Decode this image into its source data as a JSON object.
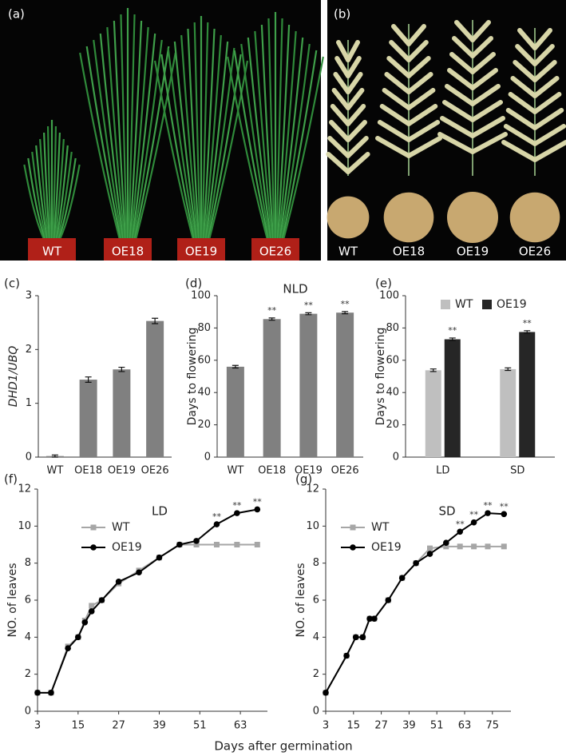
{
  "photos": {
    "a": {
      "panel": "(a)",
      "labels": [
        "WT",
        "OE18",
        "OE19",
        "OE26"
      ]
    },
    "b": {
      "panel": "(b)",
      "labels": [
        "WT",
        "OE18",
        "OE19",
        "OE26"
      ]
    }
  },
  "figure_xlabel": "Days after germination",
  "chart_data": [
    {
      "type": "bar",
      "panel": "(c)",
      "ylabel": "DHD1/UBQ",
      "categories": [
        "WT",
        "OE18",
        "OE19",
        "OE26"
      ],
      "values": [
        0.02,
        1.44,
        1.63,
        2.53
      ],
      "errors": [
        0.02,
        0.05,
        0.04,
        0.05
      ],
      "color": "#808080",
      "ylim": [
        0,
        3
      ],
      "yticks": [
        0,
        1,
        2,
        3
      ]
    },
    {
      "type": "bar",
      "panel": "(d)",
      "title": "NLD",
      "ylabel": "Days to flowering",
      "categories": [
        "WT",
        "OE18",
        "OE19",
        "OE26"
      ],
      "values": [
        56,
        85.5,
        88.8,
        89.5
      ],
      "errors": [
        0.8,
        0.7,
        0.6,
        0.7
      ],
      "annotations": [
        null,
        "**",
        "**",
        "**"
      ],
      "color": "#808080",
      "ylim": [
        0,
        100
      ],
      "yticks": [
        0,
        20,
        40,
        60,
        80,
        100
      ]
    },
    {
      "type": "grouped_bar",
      "panel": "(e)",
      "ylabel": "Days to flowering",
      "categories": [
        "LD",
        "SD"
      ],
      "series": [
        {
          "name": "WT",
          "color": "#bfbfbf",
          "values": [
            53.8,
            54.5
          ],
          "errors": [
            0.8,
            0.8
          ]
        },
        {
          "name": "OE19",
          "color": "#262626",
          "values": [
            73,
            77.5
          ],
          "errors": [
            0.8,
            0.8
          ],
          "annotations": [
            "**",
            "**"
          ]
        }
      ],
      "legend": "top",
      "ylim": [
        0,
        100
      ],
      "yticks": [
        0,
        20,
        40,
        60,
        80,
        100
      ]
    },
    {
      "type": "line",
      "panel": "(f)",
      "title": "LD",
      "ylabel": "NO. of leaves",
      "x": [
        3,
        7,
        12,
        15,
        17,
        19,
        22,
        27,
        33,
        39,
        45,
        50,
        56,
        62,
        68
      ],
      "series": [
        {
          "name": "WT",
          "color": "#a6a6a6",
          "marker": "square",
          "values": [
            1,
            1,
            3.5,
            4,
            4.9,
            5.7,
            6,
            6.9,
            7.6,
            8.3,
            9,
            9,
            9,
            9,
            9
          ]
        },
        {
          "name": "OE19",
          "color": "#000000",
          "marker": "circle",
          "values": [
            1,
            1,
            3.4,
            4,
            4.8,
            5.4,
            6,
            7,
            7.5,
            8.3,
            9,
            9.2,
            10.1,
            10.7,
            10.9
          ],
          "annotations": [
            null,
            null,
            null,
            null,
            null,
            null,
            null,
            null,
            null,
            null,
            null,
            null,
            "**",
            "**",
            "**"
          ]
        }
      ],
      "legend": "upper left",
      "xlim": [
        3,
        71
      ],
      "ylim": [
        0,
        12
      ],
      "xticks": [
        3,
        15,
        27,
        39,
        51,
        63
      ],
      "yticks": [
        0,
        2,
        4,
        6,
        8,
        10,
        12
      ]
    },
    {
      "type": "line",
      "panel": "(g)",
      "title": "SD",
      "ylabel": "NO. of leaves",
      "x": [
        3,
        12,
        16,
        19,
        22,
        24,
        30,
        36,
        42,
        48,
        55,
        61,
        67,
        73,
        80
      ],
      "series": [
        {
          "name": "WT",
          "color": "#a6a6a6",
          "marker": "square",
          "values": [
            1,
            3,
            4,
            4,
            5,
            5,
            6,
            7.2,
            8,
            8.8,
            8.9,
            8.9,
            8.9,
            8.9,
            8.9
          ]
        },
        {
          "name": "OE19",
          "color": "#000000",
          "marker": "circle",
          "values": [
            1,
            3,
            4,
            4,
            5,
            5,
            6,
            7.2,
            8,
            8.5,
            9.1,
            9.7,
            10.2,
            10.7,
            10.65
          ],
          "annotations": [
            null,
            null,
            null,
            null,
            null,
            null,
            null,
            null,
            null,
            null,
            null,
            "**",
            "**",
            "**",
            "**"
          ]
        }
      ],
      "legend": "upper left",
      "xlim": [
        3,
        83
      ],
      "ylim": [
        0,
        12
      ],
      "xticks": [
        3,
        15,
        27,
        39,
        51,
        63,
        75
      ],
      "yticks": [
        0,
        2,
        4,
        6,
        8,
        10,
        12
      ]
    }
  ]
}
